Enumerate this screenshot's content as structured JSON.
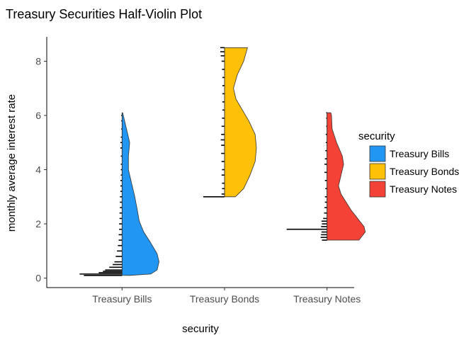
{
  "chart_data": {
    "type": "half-violin",
    "title": "Treasury Securities Half-Violin Plot",
    "xlabel": "security",
    "ylabel": "monthly average interest rate",
    "categories": [
      "Treasury Bills",
      "Treasury Bonds",
      "Treasury Notes"
    ],
    "yticks": [
      0,
      2,
      4,
      6,
      8
    ],
    "ylim": [
      -0.35,
      8.9
    ],
    "grid": false,
    "legend": {
      "title": "security",
      "position": "right",
      "entries": [
        "Treasury Bills",
        "Treasury Bonds",
        "Treasury Notes"
      ]
    },
    "colors": {
      "Treasury Bills": "#2196F3",
      "Treasury Bonds": "#FFC107",
      "Treasury Notes": "#F44336"
    },
    "series": [
      {
        "name": "Treasury Bills",
        "min": 0.1,
        "max": 6.1,
        "density": [
          [
            0.1,
            0.12
          ],
          [
            0.15,
            0.45
          ],
          [
            0.3,
            0.55
          ],
          [
            0.6,
            0.58
          ],
          [
            0.9,
            0.55
          ],
          [
            1.3,
            0.45
          ],
          [
            1.7,
            0.34
          ],
          [
            2.1,
            0.27
          ],
          [
            2.5,
            0.24
          ],
          [
            3.0,
            0.2
          ],
          [
            3.5,
            0.15
          ],
          [
            4.0,
            0.1
          ],
          [
            4.5,
            0.1
          ],
          [
            5.0,
            0.12
          ],
          [
            5.4,
            0.08
          ],
          [
            5.8,
            0.04
          ],
          [
            6.1,
            0.01
          ]
        ],
        "rug": [
          [
            0.1,
            0.9
          ],
          [
            0.15,
            1.0
          ],
          [
            0.2,
            0.55
          ],
          [
            0.25,
            0.45
          ],
          [
            0.3,
            0.4
          ],
          [
            0.4,
            0.3
          ],
          [
            0.5,
            0.22
          ],
          [
            0.6,
            0.18
          ],
          [
            0.8,
            0.15
          ],
          [
            1.0,
            0.12
          ],
          [
            1.2,
            0.1
          ],
          [
            1.4,
            0.08
          ],
          [
            1.6,
            0.08
          ],
          [
            1.8,
            0.07
          ],
          [
            2.0,
            0.07
          ],
          [
            2.2,
            0.06
          ],
          [
            2.4,
            0.06
          ],
          [
            2.6,
            0.05
          ],
          [
            2.8,
            0.05
          ],
          [
            3.0,
            0.05
          ],
          [
            3.2,
            0.04
          ],
          [
            3.4,
            0.04
          ],
          [
            3.6,
            0.04
          ],
          [
            3.8,
            0.03
          ],
          [
            4.0,
            0.03
          ],
          [
            4.2,
            0.03
          ],
          [
            4.5,
            0.03
          ],
          [
            4.8,
            0.04
          ],
          [
            5.0,
            0.04
          ],
          [
            5.2,
            0.03
          ],
          [
            5.5,
            0.02
          ],
          [
            5.8,
            0.02
          ],
          [
            6.0,
            0.02
          ]
        ]
      },
      {
        "name": "Treasury Bonds",
        "min": 3.0,
        "max": 8.5,
        "density": [
          [
            3.0,
            0.17
          ],
          [
            3.3,
            0.3
          ],
          [
            3.8,
            0.4
          ],
          [
            4.3,
            0.48
          ],
          [
            4.8,
            0.5
          ],
          [
            5.3,
            0.48
          ],
          [
            5.8,
            0.38
          ],
          [
            6.2,
            0.28
          ],
          [
            6.6,
            0.18
          ],
          [
            7.0,
            0.14
          ],
          [
            7.5,
            0.2
          ],
          [
            8.0,
            0.3
          ],
          [
            8.5,
            0.36
          ]
        ],
        "rug": [
          [
            3.0,
            0.5
          ],
          [
            3.1,
            0.07
          ],
          [
            3.3,
            0.06
          ],
          [
            3.5,
            0.06
          ],
          [
            3.8,
            0.07
          ],
          [
            4.0,
            0.06
          ],
          [
            4.3,
            0.07
          ],
          [
            4.6,
            0.08
          ],
          [
            4.9,
            0.08
          ],
          [
            5.1,
            0.09
          ],
          [
            5.3,
            0.08
          ],
          [
            5.6,
            0.07
          ],
          [
            5.9,
            0.06
          ],
          [
            6.2,
            0.05
          ],
          [
            6.5,
            0.05
          ],
          [
            6.8,
            0.05
          ],
          [
            7.1,
            0.05
          ],
          [
            7.4,
            0.05
          ],
          [
            7.7,
            0.06
          ],
          [
            8.0,
            0.07
          ],
          [
            8.2,
            0.09
          ],
          [
            8.35,
            0.1
          ],
          [
            8.5,
            0.1
          ]
        ]
      },
      {
        "name": "Treasury Notes",
        "min": 1.4,
        "max": 6.1,
        "density": [
          [
            1.4,
            0.5
          ],
          [
            1.7,
            0.6
          ],
          [
            1.9,
            0.58
          ],
          [
            2.2,
            0.48
          ],
          [
            2.5,
            0.38
          ],
          [
            2.8,
            0.3
          ],
          [
            3.1,
            0.22
          ],
          [
            3.4,
            0.18
          ],
          [
            3.8,
            0.22
          ],
          [
            4.2,
            0.26
          ],
          [
            4.5,
            0.24
          ],
          [
            5.0,
            0.15
          ],
          [
            5.5,
            0.08
          ],
          [
            6.0,
            0.07
          ],
          [
            6.1,
            0.06
          ]
        ],
        "rug": [
          [
            1.4,
            0.12
          ],
          [
            1.5,
            0.15
          ],
          [
            1.6,
            0.14
          ],
          [
            1.7,
            0.13
          ],
          [
            1.8,
            0.95
          ],
          [
            1.9,
            0.14
          ],
          [
            2.0,
            0.12
          ],
          [
            2.1,
            0.13
          ],
          [
            2.2,
            0.09
          ],
          [
            2.4,
            0.07
          ],
          [
            2.6,
            0.06
          ],
          [
            2.8,
            0.05
          ],
          [
            3.0,
            0.05
          ],
          [
            3.3,
            0.04
          ],
          [
            3.6,
            0.05
          ],
          [
            3.9,
            0.06
          ],
          [
            4.2,
            0.06
          ],
          [
            4.4,
            0.05
          ],
          [
            4.7,
            0.04
          ],
          [
            5.0,
            0.03
          ],
          [
            5.3,
            0.03
          ],
          [
            5.6,
            0.02
          ],
          [
            5.9,
            0.02
          ],
          [
            6.1,
            0.02
          ]
        ]
      }
    ]
  }
}
